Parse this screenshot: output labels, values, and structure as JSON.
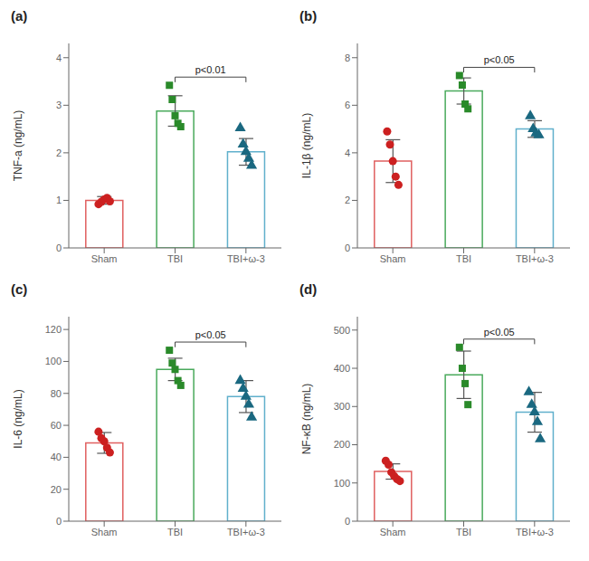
{
  "chart_data": [
    {
      "type": "bar",
      "title": "(a)",
      "ylabel": "TNF-a (ng/mL)",
      "categories": [
        "Sham",
        "TBI",
        "TBI+ω-3"
      ],
      "values": [
        1.0,
        2.88,
        2.02
      ],
      "errors": [
        0.08,
        0.32,
        0.28
      ],
      "colors": [
        "#e06060",
        "#4aaa5c",
        "#60b0cc"
      ],
      "points": [
        {
          "color": "#cc2020",
          "marker": "circle",
          "values": [
            0.92,
            0.97,
            1.02,
            1.05,
            0.98
          ]
        },
        {
          "color": "#2a8a2a",
          "marker": "square",
          "values": [
            3.42,
            3.12,
            2.78,
            2.62,
            2.55
          ]
        },
        {
          "color": "#1a6880",
          "marker": "triangle",
          "values": [
            2.52,
            2.18,
            2.02,
            1.88,
            1.73
          ]
        }
      ],
      "annotations": [
        {
          "text": "p<0.01",
          "from": "TBI",
          "to": "TBI+ω-3"
        }
      ],
      "ylim": [
        0,
        4.3
      ],
      "yticks": [
        0,
        1,
        2,
        3,
        4
      ],
      "grid": false
    },
    {
      "type": "bar",
      "title": "(b)",
      "ylabel": "IL-1β (ng/mL)",
      "categories": [
        "Sham",
        "TBI",
        "TBI+ω-3"
      ],
      "values": [
        3.65,
        6.6,
        5.0
      ],
      "errors": [
        0.9,
        0.55,
        0.35
      ],
      "colors": [
        "#e06060",
        "#4aaa5c",
        "#60b0cc"
      ],
      "points": [
        {
          "color": "#cc2020",
          "marker": "circle",
          "values": [
            4.9,
            4.35,
            3.65,
            3.0,
            2.65
          ]
        },
        {
          "color": "#2a8a2a",
          "marker": "square",
          "values": [
            7.25,
            6.85,
            6.05,
            5.85
          ]
        },
        {
          "color": "#1a6880",
          "marker": "triangle",
          "values": [
            5.55,
            5.0,
            4.82,
            4.75
          ]
        }
      ],
      "annotations": [
        {
          "text": "p<0.05",
          "from": "TBI",
          "to": "TBI+ω-3"
        }
      ],
      "ylim": [
        0,
        8.6
      ],
      "yticks": [
        0,
        2,
        4,
        6,
        8
      ],
      "grid": false
    },
    {
      "type": "bar",
      "title": "(c)",
      "ylabel": "IL-6 (ng/mL)",
      "categories": [
        "Sham",
        "TBI",
        "TBI+ω-3"
      ],
      "values": [
        49,
        95,
        78
      ],
      "errors": [
        6.5,
        7,
        10
      ],
      "colors": [
        "#e06060",
        "#4aaa5c",
        "#60b0cc"
      ],
      "points": [
        {
          "color": "#cc2020",
          "marker": "circle",
          "values": [
            56,
            52,
            50,
            46,
            43
          ]
        },
        {
          "color": "#2a8a2a",
          "marker": "square",
          "values": [
            107,
            99,
            95,
            88,
            85
          ]
        },
        {
          "color": "#1a6880",
          "marker": "triangle",
          "values": [
            88,
            83,
            78,
            73,
            65
          ]
        }
      ],
      "annotations": [
        {
          "text": "p<0.05",
          "from": "TBI",
          "to": "TBI+ω-3"
        }
      ],
      "ylim": [
        0,
        128
      ],
      "yticks": [
        0,
        20,
        40,
        60,
        80,
        100,
        120
      ],
      "grid": false
    },
    {
      "type": "bar",
      "title": "(d)",
      "ylabel": "NF-κB (ng/mL)",
      "categories": [
        "Sham",
        "TBI",
        "TBI+ω-3"
      ],
      "values": [
        130,
        383,
        285
      ],
      "errors": [
        20,
        62,
        52
      ],
      "colors": [
        "#e06060",
        "#4aaa5c",
        "#60b0cc"
      ],
      "points": [
        {
          "color": "#cc2020",
          "marker": "circle",
          "values": [
            158,
            148,
            128,
            118,
            110,
            105
          ]
        },
        {
          "color": "#2a8a2a",
          "marker": "square",
          "values": [
            455,
            400,
            360,
            305
          ]
        },
        {
          "color": "#1a6880",
          "marker": "triangle",
          "values": [
            338,
            305,
            285,
            260,
            215
          ]
        }
      ],
      "annotations": [
        {
          "text": "p<0.05",
          "from": "TBI",
          "to": "TBI+ω-3"
        }
      ],
      "ylim": [
        0,
        535
      ],
      "yticks": [
        0,
        100,
        200,
        300,
        400,
        500
      ],
      "grid": false
    }
  ]
}
